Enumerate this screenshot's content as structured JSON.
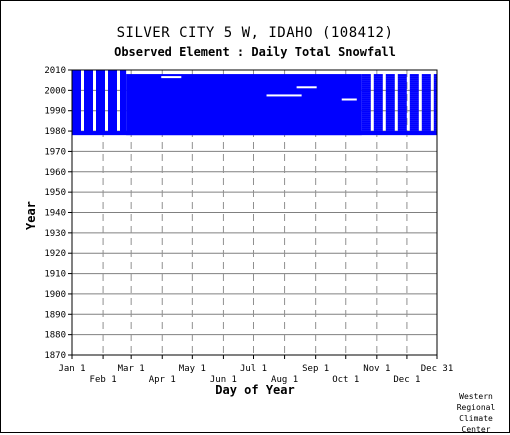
{
  "chart_data": {
    "type": "heatmap",
    "title": "SILVER CITY 5 W, IDAHO   (108412)",
    "subtitle": "Observed Element : Daily Total Snowfall",
    "xlabel": "Day of Year",
    "ylabel": "Year",
    "x_ticks_upper": [
      "Jan 1",
      "Mar 1",
      "May 1",
      "Jul 1",
      "Sep 1",
      "Nov 1",
      "Dec 31"
    ],
    "x_ticks_lower": [
      "Feb 1",
      "Apr 1",
      "Jun 1",
      "Aug 1",
      "Oct 1",
      "Dec 1"
    ],
    "x_tick_days_upper": [
      1,
      60,
      121,
      182,
      244,
      305,
      365
    ],
    "x_tick_days_lower": [
      32,
      91,
      152,
      213,
      274,
      335
    ],
    "xlim": [
      1,
      365
    ],
    "y_ticks": [
      1870,
      1880,
      1890,
      1900,
      1910,
      1920,
      1930,
      1940,
      1950,
      1960,
      1970,
      1980,
      1990,
      2000,
      2010
    ],
    "ylim": [
      1870,
      2010
    ],
    "data_color": "#0000ff",
    "solid_blocks": [
      {
        "day_start": 55,
        "day_end": 290,
        "year_start": 1978,
        "year_end": 2008
      },
      {
        "day_start": 1,
        "day_end": 365,
        "year_start": 1978,
        "year_end": 1980
      }
    ],
    "streaked_blocks": [
      {
        "day_start": 1,
        "day_end": 55,
        "year_start": 1980,
        "year_end": 2010
      },
      {
        "day_start": 290,
        "day_end": 365,
        "year_start": 1980,
        "year_end": 2008
      }
    ],
    "record_years": [
      1978,
      2010
    ],
    "credit": [
      "Western",
      "Regional",
      "Climate",
      "Center"
    ]
  }
}
